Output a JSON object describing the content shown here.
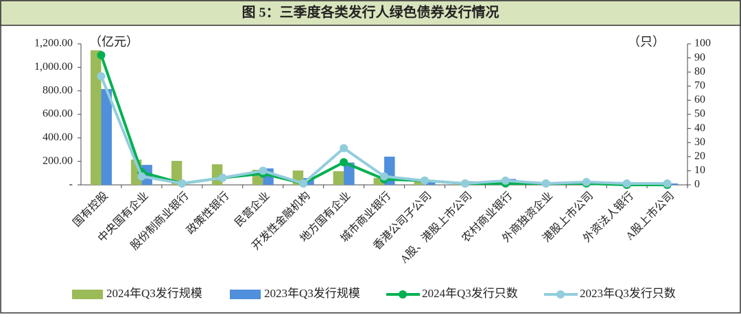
{
  "chart_data": {
    "type": "bar-line",
    "title": "图 5：三季度各类发行人绿色债券发行情况",
    "y_label": "（亿元）",
    "y2_label": "（只）",
    "categories": [
      "国有控股",
      "中央国有企业",
      "股份制商业银行",
      "政策性银行",
      "民营企业",
      "开发性金融机构",
      "地方国有企业",
      "城市商业银行",
      "香港公司子公司",
      "A股、港股上市公司",
      "农村商业银行",
      "外商独资企业",
      "港股上市公司",
      "外资法人银行",
      "A股上市公司"
    ],
    "series": [
      {
        "name": "2024年Q3发行规模",
        "kind": "bar",
        "color": "#9bbb59",
        "values": [
          1145,
          215,
          204,
          175,
          128,
          122,
          116,
          58,
          29,
          20,
          20,
          10,
          10,
          5,
          5
        ]
      },
      {
        "name": "2023年Q3发行规模",
        "kind": "bar",
        "color": "#4f8fdb",
        "values": [
          815,
          170,
          0,
          0,
          140,
          58,
          190,
          240,
          35,
          30,
          50,
          0,
          5,
          3,
          12
        ]
      },
      {
        "name": "2024年Q3发行只数",
        "kind": "line",
        "axis": "y2",
        "color": "#00b050",
        "values": [
          92,
          9,
          1,
          5,
          8,
          1,
          16,
          4,
          3,
          1,
          1,
          1,
          1,
          0,
          0
        ]
      },
      {
        "name": "2023年Q3发行只数",
        "kind": "line",
        "axis": "y2",
        "color": "#92cddc",
        "values": [
          77,
          6,
          1,
          5,
          10,
          1,
          26,
          6,
          3,
          1,
          3,
          1,
          2,
          1,
          1
        ]
      }
    ],
    "ylim": [
      0,
      1200
    ],
    "yticks": [
      {
        "value": 0,
        "label": "-"
      },
      {
        "value": 200,
        "label": "200.00"
      },
      {
        "value": 400,
        "label": "400.00"
      },
      {
        "value": 600,
        "label": "600.00"
      },
      {
        "value": 800,
        "label": "800.00"
      },
      {
        "value": 1000,
        "label": "1,000.00"
      },
      {
        "value": 1200,
        "label": "1,200.00"
      }
    ],
    "y2lim": [
      0,
      100
    ],
    "y2ticks": [
      0,
      10,
      20,
      30,
      40,
      50,
      60,
      70,
      80,
      90,
      100
    ],
    "legend": "bottom"
  }
}
